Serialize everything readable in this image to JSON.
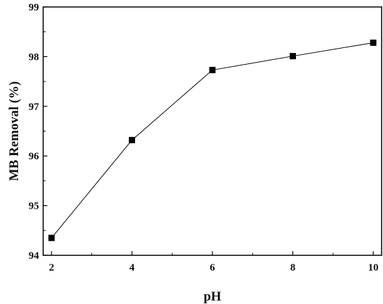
{
  "chart_data": {
    "type": "line",
    "title": "",
    "xlabel": "pH",
    "ylabel": "MB Removal (%)",
    "x": [
      2,
      4,
      6,
      8,
      10
    ],
    "series": [
      {
        "values": [
          94.35,
          96.32,
          97.73,
          98.01,
          98.28
        ]
      }
    ],
    "xlim": [
      2,
      10
    ],
    "ylim": [
      94,
      99
    ],
    "xticks": [
      "2",
      "4",
      "6",
      "8",
      "10"
    ],
    "yticks": [
      "94",
      "95",
      "96",
      "97",
      "98",
      "99"
    ],
    "grid": false,
    "legend": "none",
    "marker": "square",
    "colors": {
      "line": "#000000",
      "marker": "#000000",
      "axis": "#000000"
    }
  }
}
